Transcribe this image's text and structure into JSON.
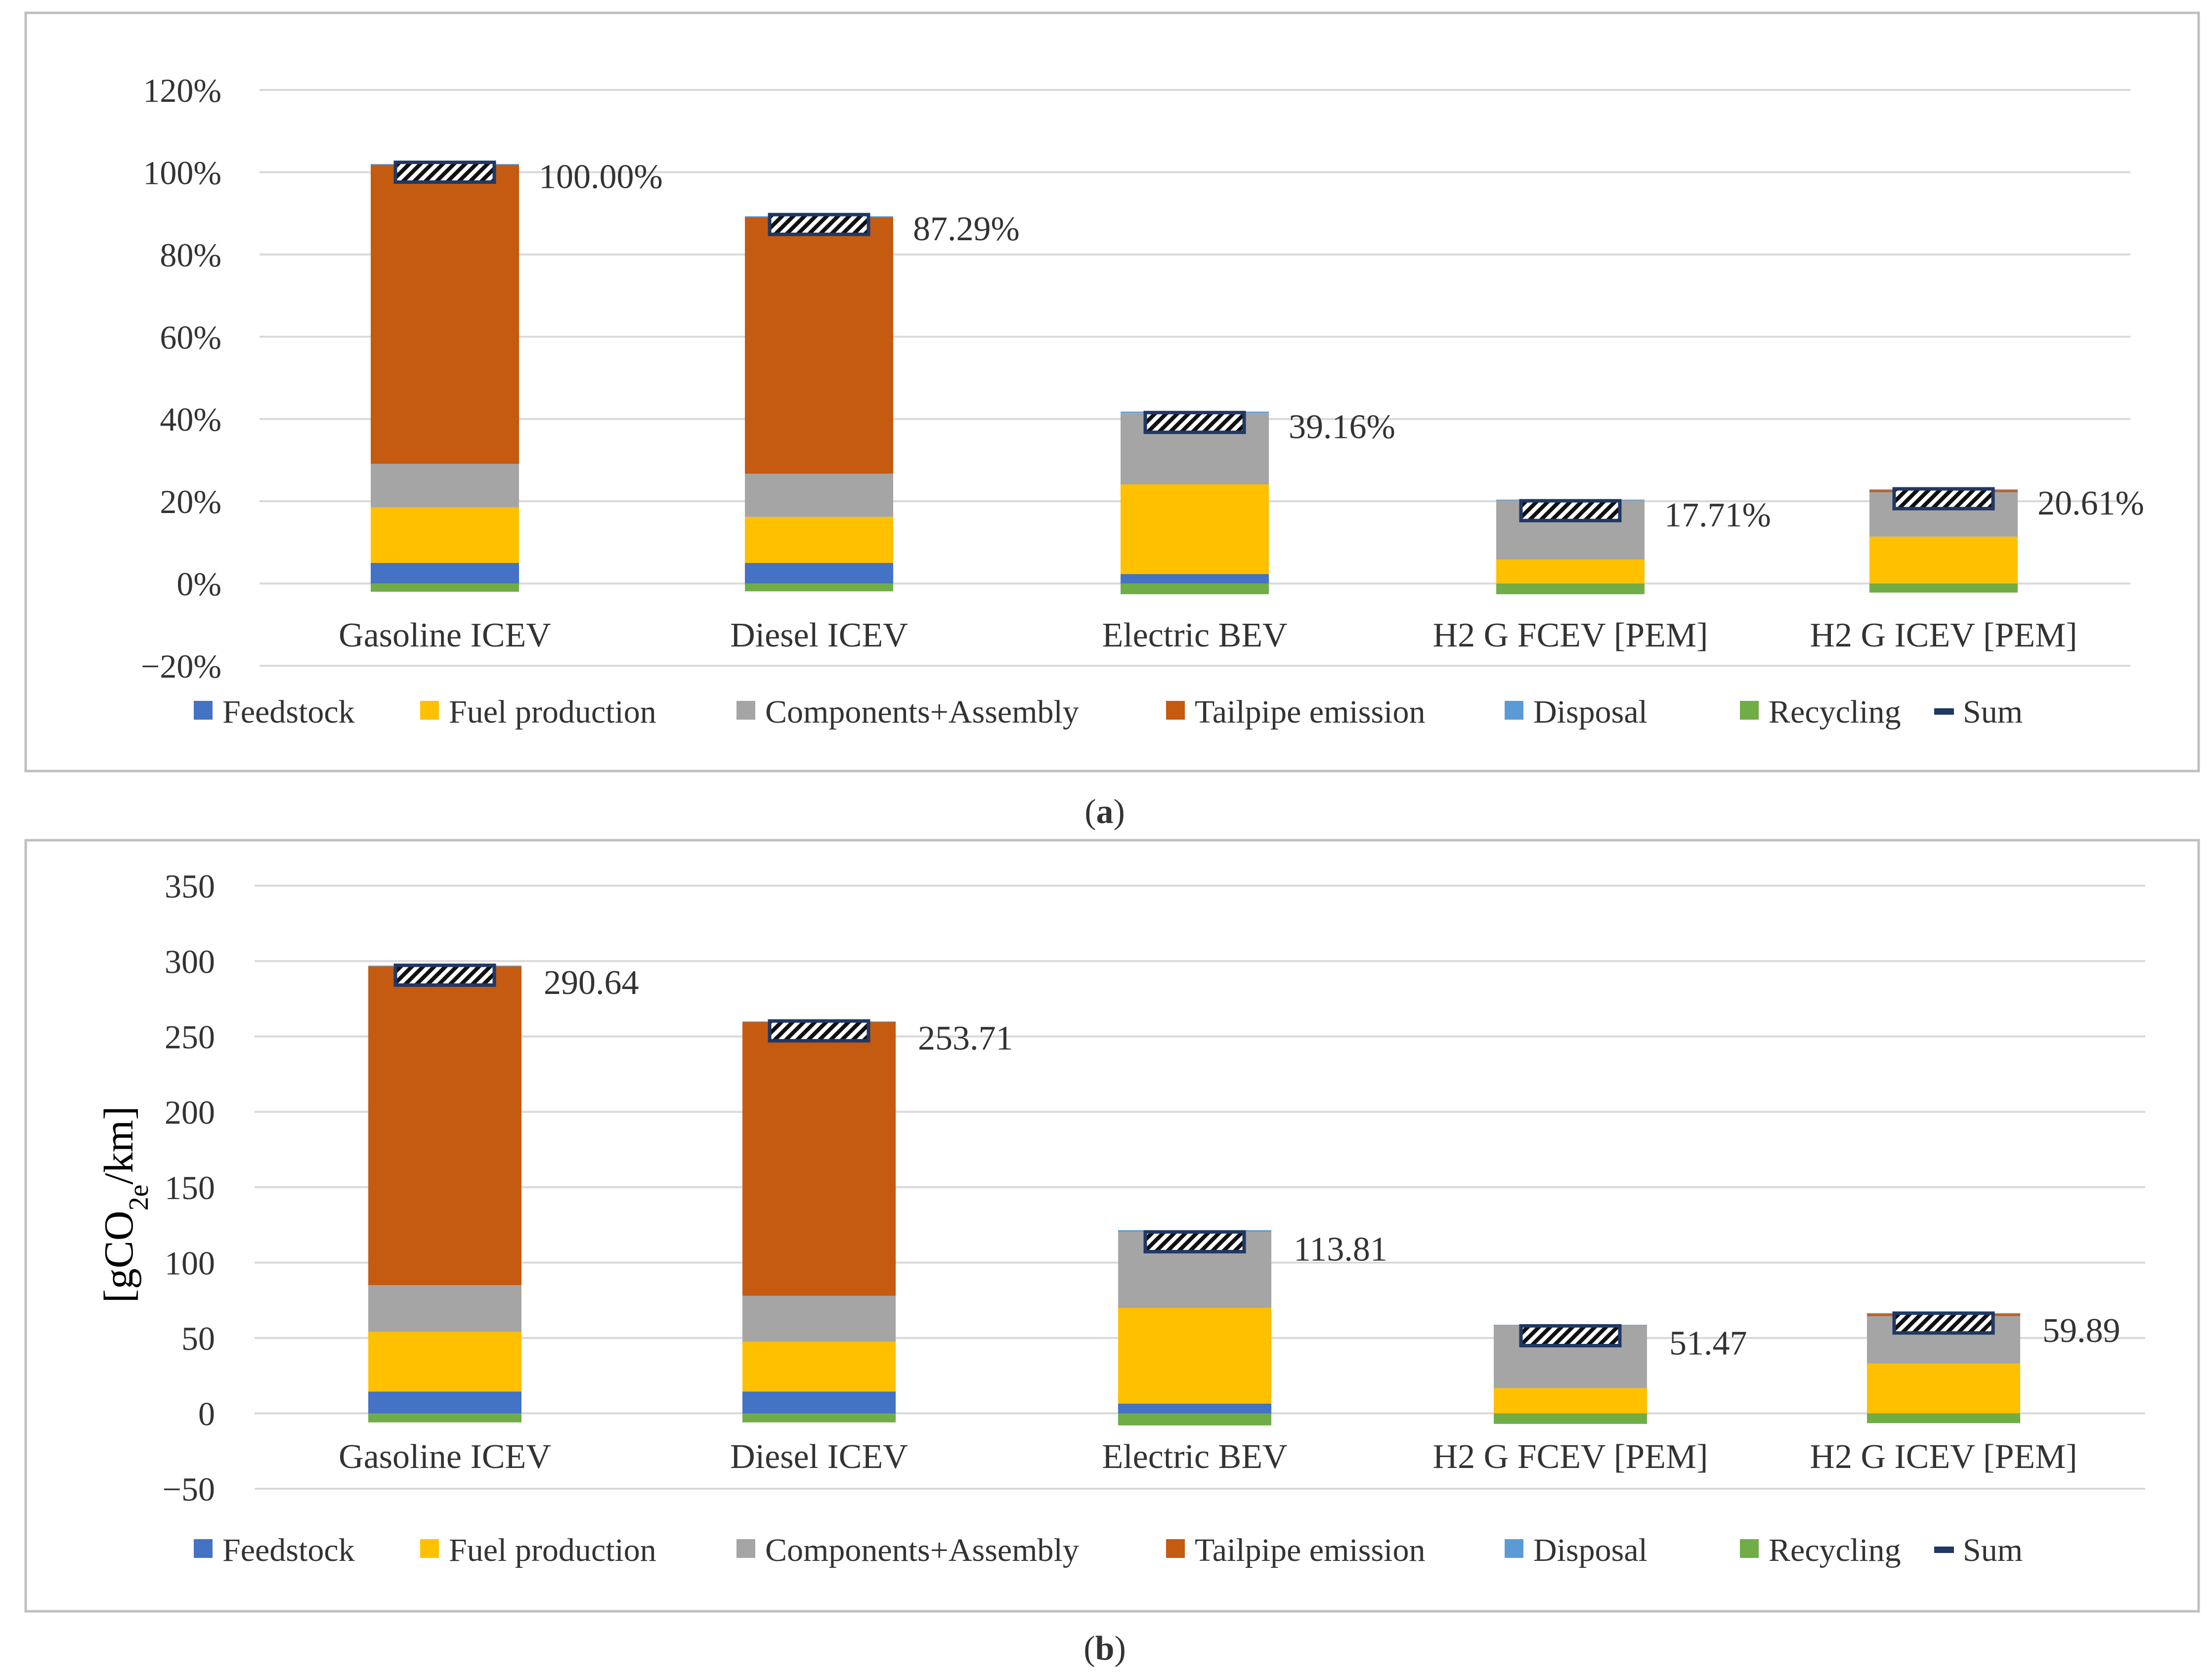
{
  "colors": {
    "feedstock": "#4472C4",
    "fuel_production": "#FFC000",
    "components_assembly": "#A5A5A5",
    "tailpipe_emission": "#C55A11",
    "disposal": "#5B9BD5",
    "recycling": "#70AD47",
    "sum": "#203864"
  },
  "chart_data": [
    {
      "type": "bar",
      "stacked": true,
      "caption_letter": "a",
      "ylabel": "",
      "ylim": [
        -20,
        120
      ],
      "ytick_values": [
        -20,
        0,
        20,
        40,
        60,
        80,
        100,
        120
      ],
      "ytick_labels": [
        "−20%",
        "0%",
        "20%",
        "40%",
        "60%",
        "80%",
        "100%",
        "120%"
      ],
      "categories": [
        "Gasoline ICEV",
        "Diesel ICEV",
        "Electric BEV",
        "H2 G FCEV [PEM]",
        "H2 G ICEV [PEM]"
      ],
      "series": [
        {
          "name": "Feedstock",
          "key": "feedstock",
          "values": [
            5,
            5,
            2.3,
            0,
            0
          ]
        },
        {
          "name": "Fuel production",
          "key": "fuel_production",
          "values": [
            13.5,
            11.2,
            21.8,
            5.8,
            11.4
          ]
        },
        {
          "name": "Components+Assembly",
          "key": "components_assembly",
          "values": [
            10.6,
            10.5,
            17.4,
            14.4,
            10.8
          ]
        },
        {
          "name": "Tailpipe emission",
          "key": "tailpipe_emission",
          "values": [
            72.7,
            62.4,
            0,
            0,
            0.5
          ]
        },
        {
          "name": "Disposal",
          "key": "disposal",
          "values": [
            0.2,
            0.2,
            0.3,
            0.2,
            0.2
          ]
        },
        {
          "name": "Recycling",
          "key": "recycling",
          "values": [
            -2,
            -1.9,
            -2.6,
            -2.6,
            -2.2
          ]
        }
      ],
      "sum_name": "Sum",
      "sum_values": [
        100,
        87.29,
        39.16,
        17.71,
        20.61
      ],
      "sum_labels": [
        "100.00%",
        "87.29%",
        "39.16%",
        "17.71%",
        "20.61%"
      ]
    },
    {
      "type": "bar",
      "stacked": true,
      "caption_letter": "b",
      "ylabel_main": "[gCO",
      "ylabel_sub": "2e",
      "ylabel_tail": "/km]",
      "ylim": [
        -50,
        350
      ],
      "ytick_values": [
        -50,
        0,
        50,
        100,
        150,
        200,
        250,
        300,
        350
      ],
      "ytick_labels": [
        "−50",
        "0",
        "50",
        "100",
        "150",
        "200",
        "250",
        "300",
        "350"
      ],
      "categories": [
        "Gasoline ICEV",
        "Diesel ICEV",
        "Electric BEV",
        "H2 G FCEV [PEM]",
        "H2 G ICEV [PEM]"
      ],
      "series": [
        {
          "name": "Feedstock",
          "key": "feedstock",
          "values": [
            14.5,
            14.5,
            6.5,
            0,
            0
          ]
        },
        {
          "name": "Fuel production",
          "key": "fuel_production",
          "values": [
            39.5,
            33,
            63.5,
            16.7,
            33
          ]
        },
        {
          "name": "Components+Assembly",
          "key": "components_assembly",
          "values": [
            31,
            30.5,
            50.5,
            41.5,
            31.5
          ]
        },
        {
          "name": "Tailpipe emission",
          "key": "tailpipe_emission",
          "values": [
            211.5,
            181.5,
            0,
            0,
            1.5
          ]
        },
        {
          "name": "Disposal",
          "key": "disposal",
          "values": [
            0.5,
            0.5,
            1,
            0.5,
            0.5
          ]
        },
        {
          "name": "Recycling",
          "key": "recycling",
          "values": [
            -6,
            -6,
            -8,
            -7,
            -6.5
          ]
        }
      ],
      "sum_name": "Sum",
      "sum_values": [
        290.64,
        253.71,
        113.81,
        51.47,
        59.89
      ],
      "sum_labels": [
        "290.64",
        "253.71",
        "113.81",
        "51.47",
        "59.89"
      ]
    }
  ]
}
